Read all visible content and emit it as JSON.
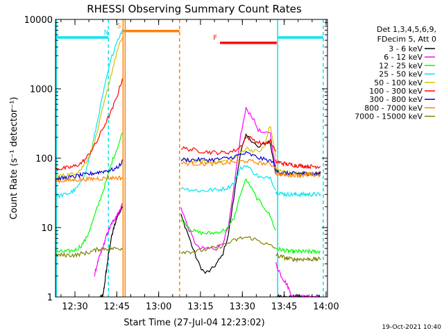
{
  "chart_data": {
    "type": "line",
    "title": "RHESSI Observing Summary Count Rates",
    "xlabel": "Start Time (27-Jul-04 12:23:02)",
    "ylabel": "Count Rate (s⁻¹ detector⁻¹)",
    "y_scale": "log",
    "ylim": [
      1,
      10000
    ],
    "xlim": [
      "12:23:02",
      "14:00:30"
    ],
    "x_ticks": [
      "12:30",
      "12:45",
      "13:00",
      "13:15",
      "13:30",
      "13:45",
      "14:00"
    ],
    "y_ticks": [
      "1",
      "10",
      "100",
      "1000",
      "10000"
    ],
    "legend_header": [
      "Det 1,3,4,5,6,9,",
      "FDecim 5, Att 0"
    ],
    "legend_position": "right",
    "timestamp": "19-Oct-2021 10:40",
    "flags": [
      {
        "label": "N",
        "color": "#00e5ee",
        "level": 5500,
        "segments": [
          [
            "12:23:02",
            "12:42:00"
          ],
          [
            "13:42:40",
            "13:59:00"
          ]
        ]
      },
      {
        "label": "S",
        "color": "#ff8000",
        "level": 6800,
        "segments": [
          [
            "12:47:30",
            "13:07:30"
          ]
        ]
      },
      {
        "label": "F",
        "color": "#ff0000",
        "level": 4600,
        "segments": [
          [
            "13:22:00",
            "13:42:20"
          ]
        ]
      }
    ],
    "vlines": [
      {
        "time": "12:23:20",
        "color": "#00e5ee",
        "style": "solid"
      },
      {
        "time": "12:42:00",
        "color": "#00e5ee",
        "style": "dashed"
      },
      {
        "time": "12:47:15",
        "color": "#ff8000",
        "style": "solid"
      },
      {
        "time": "12:48:00",
        "color": "#ff8000",
        "style": "solid"
      },
      {
        "time": "13:07:30",
        "color": "#ff8000",
        "style": "dashed"
      },
      {
        "time": "13:42:40",
        "color": "#00e5ee",
        "style": "solid"
      },
      {
        "time": "13:59:00",
        "color": "#00e5ee",
        "style": "dashed"
      }
    ],
    "series": [
      {
        "name": "3 - 6 keV",
        "color": "#000000",
        "segments": [
          {
            "start": "12:39:00",
            "end": "12:47:00",
            "values": [
              1,
              1,
              2,
              4,
              7,
              10,
              14,
              17,
              20
            ]
          },
          {
            "start": "13:08:00",
            "end": "13:42:00",
            "values": [
              15,
              9,
              5,
              3,
              2.2,
              2.4,
              3,
              4,
              8,
              30,
              120,
              210,
              180,
              140,
              160,
              175,
              60
            ]
          },
          {
            "start": "13:42:00",
            "end": "13:58:00",
            "values": [
              1,
              1,
              1,
              1,
              1,
              1,
              1,
              1,
              1
            ]
          }
        ]
      },
      {
        "name": "6 - 12 keV",
        "color": "#ff00ff",
        "segments": [
          {
            "start": "12:37:00",
            "end": "12:47:00",
            "values": [
              2,
              3,
              4,
              5,
              7,
              9,
              11,
              13,
              15,
              17,
              22
            ]
          },
          {
            "start": "13:08:00",
            "end": "13:42:00",
            "values": [
              20,
              11,
              7,
              5,
              5,
              5,
              5,
              6,
              10,
              40,
              200,
              520,
              400,
              260,
              220,
              250,
              70
            ]
          },
          {
            "start": "13:42:00",
            "end": "13:58:00",
            "values": [
              3,
              2,
              1.5,
              1,
              1,
              1,
              1,
              1,
              1
            ]
          }
        ]
      },
      {
        "name": "12 - 25 keV",
        "color": "#00ff00",
        "segments": [
          {
            "start": "12:23:02",
            "end": "12:47:00",
            "values": [
              4.5,
              4.5,
              4.5,
              4.6,
              4.8,
              5.5,
              7,
              11,
              18,
              30,
              50,
              90,
              140,
              230
            ]
          },
          {
            "start": "13:08:00",
            "end": "13:42:00",
            "values": [
              13,
              11,
              9,
              8.5,
              8.3,
              8.3,
              8.5,
              9,
              10,
              14,
              30,
              50,
              35,
              25,
              20,
              15,
              9
            ]
          },
          {
            "start": "13:42:00",
            "end": "13:58:00",
            "values": [
              5,
              4.8,
              4.6,
              4.5,
              4.5,
              4.5,
              4.5,
              4.5,
              4.5
            ]
          }
        ]
      },
      {
        "name": "25 - 50 keV",
        "color": "#00e5ee",
        "segments": [
          {
            "start": "12:23:02",
            "end": "12:47:00",
            "values": [
              28,
              29,
              30,
              32,
              36,
              45,
              70,
              130,
              300,
              700,
              1500,
              3000,
              5000,
              6800
            ]
          },
          {
            "start": "13:08:00",
            "end": "13:42:00",
            "values": [
              38,
              36,
              35,
              34,
              34,
              35,
              35,
              36,
              38,
              45,
              70,
              80,
              65,
              55,
              50,
              55,
              35
            ]
          },
          {
            "start": "13:42:00",
            "end": "13:58:00",
            "values": [
              32,
              31,
              30,
              30,
              30,
              30,
              30,
              30,
              30
            ]
          }
        ]
      },
      {
        "name": "50 - 100 keV",
        "color": "#d4c000",
        "segments": [
          {
            "start": "12:23:02",
            "end": "12:47:00",
            "values": [
              55,
              56,
              57,
              58,
              62,
              70,
              90,
              130,
              220,
              450,
              900,
              1800,
              3500,
              5500
            ]
          },
          {
            "start": "13:08:00",
            "end": "13:42:00",
            "values": [
              95,
              92,
              90,
              89,
              88,
              88,
              88,
              90,
              93,
              100,
              120,
              140,
              130,
              125,
              140,
              300,
              110
            ]
          },
          {
            "start": "13:42:00",
            "end": "13:58:00",
            "values": [
              70,
              65,
              62,
              60,
              60,
              60,
              60,
              60,
              60
            ]
          }
        ]
      },
      {
        "name": "100 - 300 keV",
        "color": "#ff0000",
        "segments": [
          {
            "start": "12:23:02",
            "end": "12:47:00",
            "values": [
              70,
              71,
              72,
              74,
              78,
              85,
              100,
              130,
              170,
              250,
              350,
              500,
              800,
              1400
            ]
          },
          {
            "start": "13:08:00",
            "end": "13:42:00",
            "values": [
              140,
              136,
              132,
              128,
              125,
              122,
              120,
              120,
              122,
              128,
              145,
              200,
              190,
              170,
              160,
              180,
              120
            ]
          },
          {
            "start": "13:42:00",
            "end": "13:58:00",
            "values": [
              90,
              85,
              82,
              80,
              78,
              77,
              76,
              76,
              76
            ]
          }
        ]
      },
      {
        "name": "300 - 800 keV",
        "color": "#0000cc",
        "segments": [
          {
            "start": "12:23:02",
            "end": "12:47:00",
            "values": [
              50,
              51,
              52,
              53,
              55,
              57,
              58,
              60,
              62,
              64,
              66,
              68,
              72,
              90
            ]
          },
          {
            "start": "13:08:00",
            "end": "13:42:00",
            "values": [
              95,
              95,
              95,
              95,
              95,
              95,
              96,
              98,
              100,
              105,
              112,
              118,
              110,
              102,
              96,
              92,
              80
            ]
          },
          {
            "start": "13:42:00",
            "end": "13:58:00",
            "values": [
              65,
              62,
              60,
              60,
              60,
              60,
              60,
              60,
              60
            ]
          }
        ]
      },
      {
        "name": "800 - 7000 keV",
        "color": "#ff8000",
        "segments": [
          {
            "start": "12:23:02",
            "end": "12:47:00",
            "values": [
              47,
              47,
              48,
              48,
              49,
              49,
              50,
              50,
              51,
              51,
              52,
              52,
              52,
              52
            ]
          },
          {
            "start": "13:08:00",
            "end": "13:42:00",
            "values": [
              85,
              84,
              84,
              83,
              83,
              83,
              84,
              85,
              86,
              88,
              90,
              92,
              89,
              86,
              84,
              82,
              75
            ]
          },
          {
            "start": "13:42:00",
            "end": "13:58:00",
            "values": [
              60,
              58,
              57,
              57,
              57,
              57,
              57,
              57,
              57
            ]
          }
        ]
      },
      {
        "name": "7000 - 15000 keV",
        "color": "#808000",
        "segments": [
          {
            "start": "12:23:02",
            "end": "12:47:00",
            "values": [
              4,
              4,
              4,
              4,
              4,
              4.2,
              4.3,
              4.5,
              4.8,
              5,
              5,
              5,
              5,
              5
            ]
          },
          {
            "start": "13:08:00",
            "end": "13:42:00",
            "values": [
              4.5,
              4.5,
              4.5,
              4.6,
              4.8,
              5,
              5.2,
              5.5,
              6,
              6.5,
              7,
              7.2,
              7,
              6.5,
              6,
              5.5,
              5
            ]
          },
          {
            "start": "13:42:00",
            "end": "13:58:00",
            "values": [
              4,
              3.8,
              3.6,
              3.5,
              3.5,
              3.5,
              3.5,
              3.5,
              3.5
            ]
          }
        ]
      }
    ]
  }
}
